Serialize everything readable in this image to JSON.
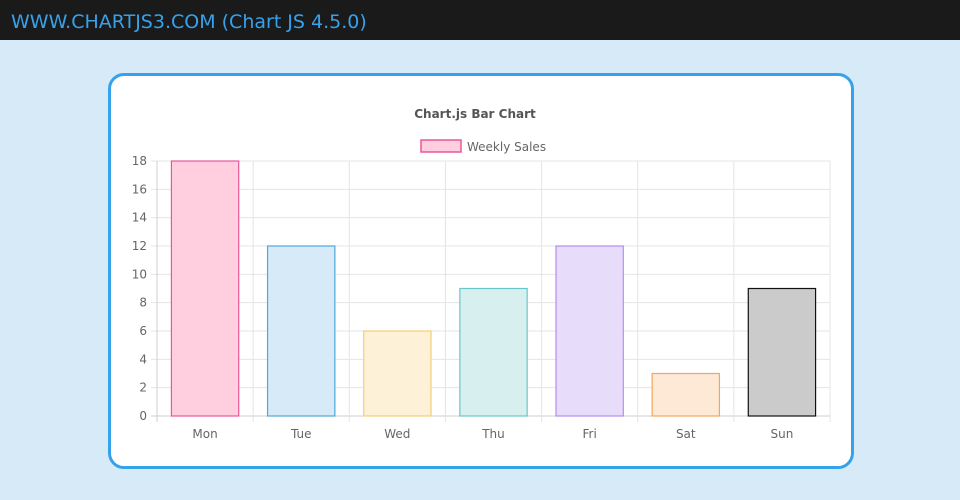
{
  "header": {
    "brand": "WWW.CHARTJS3.COM (Chart JS 4.5.0)"
  },
  "chart_data": {
    "type": "bar",
    "title": "Chart.js Bar Chart",
    "legend_position": "top",
    "grid": true,
    "categories": [
      "Mon",
      "Tue",
      "Wed",
      "Thu",
      "Fri",
      "Sat",
      "Sun"
    ],
    "series": [
      {
        "name": "Weekly Sales",
        "values": [
          18,
          12,
          6,
          9,
          12,
          3,
          9
        ]
      }
    ],
    "ylim": [
      0,
      18
    ],
    "yticks": [
      "0",
      "2",
      "4",
      "6",
      "8",
      "10",
      "12",
      "14",
      "16",
      "18"
    ],
    "bar_fill_colors": [
      "#ffcfdf",
      "#d6eaf8",
      "#fdf1d8",
      "#d7f0ef",
      "#e8dcfb",
      "#fde9d6",
      "#cbcbcb"
    ],
    "bar_border_colors": [
      "#e8579a",
      "#4fa8dc",
      "#f5cf74",
      "#66c6c8",
      "#b58cf0",
      "#f2a85c",
      "#111111"
    ]
  }
}
